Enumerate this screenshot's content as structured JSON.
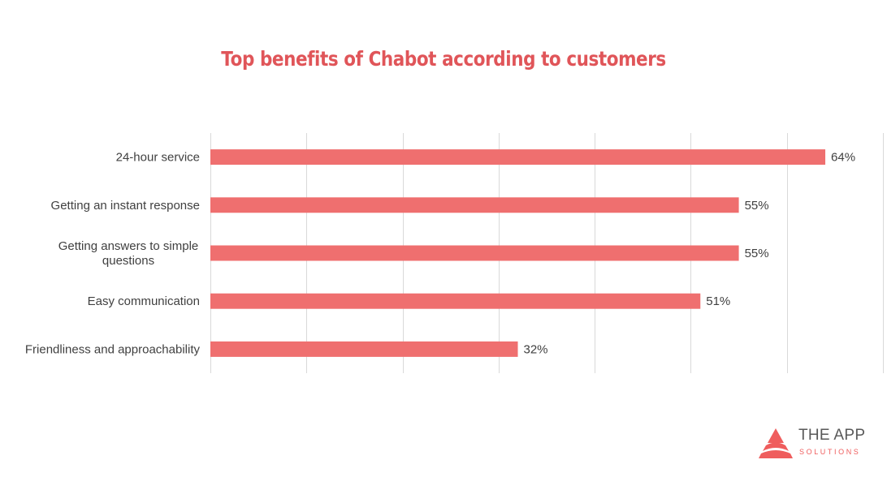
{
  "colors": {
    "title": "#e05559",
    "bar": "#ef6f6f",
    "grid": "#d9d9d9",
    "text": "#404040",
    "brand": "#ef5d5d"
  },
  "chart_data": {
    "type": "bar",
    "orientation": "horizontal",
    "title": "Top benefits of Chabot according to customers",
    "categories": [
      [
        "24-hour service"
      ],
      [
        "Getting an instant response"
      ],
      [
        "Getting answers to simple",
        "questions"
      ],
      [
        "Easy communication"
      ],
      [
        "Friendliness and approachability"
      ]
    ],
    "values": [
      64,
      55,
      55,
      51,
      32
    ],
    "value_labels": [
      "64%",
      "55%",
      "55%",
      "51%",
      "32%"
    ],
    "xlim": [
      0,
      70
    ],
    "x_gridlines": [
      0,
      10,
      20,
      30,
      40,
      50,
      60,
      70
    ],
    "grid": true,
    "legend": "none"
  },
  "logo": {
    "name": "THE APP",
    "subtitle": "SOLUTIONS",
    "icon": "triangle-logo-icon"
  }
}
